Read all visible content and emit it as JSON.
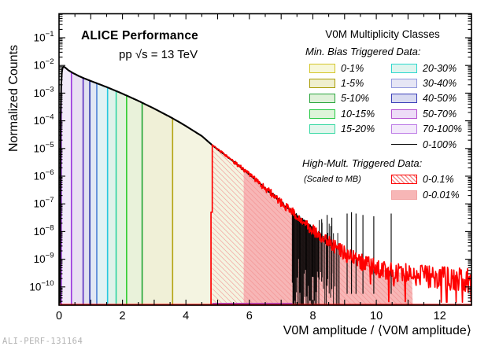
{
  "footer": "ALI-PERF-131164",
  "legend": {
    "title": "V0M Multiplicity Classes",
    "mb_header": "Min. Bias Triggered Data:",
    "mb_entries": [
      {
        "label": "0-1%",
        "fill": "#f7f7d9",
        "border": "#d4c62a"
      },
      {
        "label": "1-5%",
        "fill": "#efefcf",
        "border": "#a89b05"
      },
      {
        "label": "5-10%",
        "fill": "#dff1d9",
        "border": "#2aa53c"
      },
      {
        "label": "10-15%",
        "fill": "#def4d9",
        "border": "#27c944"
      },
      {
        "label": "15-20%",
        "fill": "#e2f6ec",
        "border": "#38d9a4"
      },
      {
        "label": "20-30%",
        "fill": "#def4ee",
        "border": "#2bd8cd"
      },
      {
        "label": "30-40%",
        "fill": "#e6e6f5",
        "border": "#9097dd"
      },
      {
        "label": "40-50%",
        "fill": "#d8daf1",
        "border": "#3a3eb8"
      },
      {
        "label": "50-70%",
        "fill": "#eddcf7",
        "border": "#b44fd0"
      },
      {
        "label": "70-100%",
        "fill": "#f3e9fb",
        "border": "#bd7ce6"
      }
    ],
    "total_entry": {
      "label": "0-100%",
      "color": "#000000"
    },
    "hm_header": "High-Mult. Triggered Data:",
    "hm_note": "(Scaled to MB)",
    "hm_entries": [
      {
        "label": "0-0.1%",
        "type": "hatch",
        "border": "#ff0000",
        "hatch": "#f28c8c"
      },
      {
        "label": "0-0.01%",
        "type": "solid",
        "fill": "#f7b6b6",
        "border": "#f2a3a3"
      }
    ]
  },
  "chart_data": {
    "type": "area",
    "title": "ALICE Performance",
    "subtitle": "pp √s = 13 TeV",
    "xlabel": "V0M amplitude / ⟨V0M amplitude⟩",
    "ylabel": "Normalized Counts",
    "x_range": [
      0,
      13
    ],
    "x_major_ticks": [
      0,
      2,
      4,
      6,
      8,
      10,
      12
    ],
    "x_minor_step": 0.5,
    "y_decade_exponents": [
      -1,
      -2,
      -3,
      -4,
      -5,
      -6,
      -7,
      -8,
      -9,
      -10
    ],
    "y_top_log": -0.134,
    "y_bottom_log": -10.66,
    "grid": false,
    "legend_position": "top-right",
    "envelope_log10": [
      [
        0.03,
        -10.6
      ],
      [
        0.04,
        -6.5
      ],
      [
        0.05,
        -3.9
      ],
      [
        0.06,
        -3.0
      ],
      [
        0.08,
        -2.4
      ],
      [
        0.1,
        -2.12
      ],
      [
        0.14,
        -2.04
      ],
      [
        0.2,
        -2.08
      ],
      [
        0.3,
        -2.18
      ],
      [
        0.45,
        -2.28
      ],
      [
        0.6,
        -2.37
      ],
      [
        0.8,
        -2.47
      ],
      [
        1.0,
        -2.56
      ],
      [
        1.25,
        -2.67
      ],
      [
        1.5,
        -2.78
      ],
      [
        1.75,
        -2.9
      ],
      [
        2.0,
        -3.02
      ],
      [
        2.25,
        -3.15
      ],
      [
        2.5,
        -3.28
      ],
      [
        2.75,
        -3.42
      ],
      [
        3.0,
        -3.56
      ],
      [
        3.25,
        -3.71
      ],
      [
        3.5,
        -3.86
      ],
      [
        3.75,
        -4.02
      ],
      [
        4.0,
        -4.19
      ],
      [
        4.25,
        -4.37
      ],
      [
        4.5,
        -4.55
      ],
      [
        4.83,
        -4.88
      ],
      [
        5.0,
        -5.03
      ],
      [
        5.25,
        -5.25
      ],
      [
        5.5,
        -5.47
      ],
      [
        5.75,
        -5.7
      ],
      [
        6.0,
        -5.94
      ],
      [
        6.25,
        -6.18
      ],
      [
        6.5,
        -6.43
      ],
      [
        6.75,
        -6.68
      ],
      [
        7.0,
        -6.95
      ],
      [
        7.25,
        -7.2
      ],
      [
        7.5,
        -7.45
      ],
      [
        7.75,
        -7.7
      ],
      [
        8.0,
        -7.95
      ],
      [
        8.25,
        -8.18
      ],
      [
        8.5,
        -8.4
      ],
      [
        8.75,
        -8.6
      ],
      [
        9.0,
        -8.78
      ],
      [
        9.25,
        -8.95
      ],
      [
        9.5,
        -9.1
      ],
      [
        9.75,
        -9.22
      ],
      [
        10.0,
        -9.32
      ],
      [
        10.5,
        -9.45
      ],
      [
        11.0,
        -9.52
      ],
      [
        11.5,
        -9.58
      ],
      [
        12.0,
        -9.62
      ],
      [
        12.5,
        -9.66
      ],
      [
        13.0,
        -9.7
      ]
    ],
    "bands": [
      {
        "label": "70-100%",
        "x0": 0.07,
        "x1": 0.39,
        "fill": "#f3ecfa",
        "line": "#9934dd"
      },
      {
        "label": "50-70%",
        "x0": 0.39,
        "x1": 0.76,
        "fill": "#e9e0f3",
        "line": "#5a2ec0"
      },
      {
        "label": "40-50%",
        "x0": 0.76,
        "x1": 0.97,
        "fill": "#e2e2f0",
        "line": "#2b36ad"
      },
      {
        "label": "30-40%",
        "x0": 0.97,
        "x1": 1.19,
        "fill": "#e1e7f4",
        "line": "#4f82d6"
      },
      {
        "label": "20-30%",
        "x0": 1.19,
        "x1": 1.53,
        "fill": "#e1f2f4",
        "line": "#25c8e0"
      },
      {
        "label": "15-20%",
        "x0": 1.53,
        "x1": 1.8,
        "fill": "#dff2ea",
        "line": "#2bd3a2"
      },
      {
        "label": "10-15%",
        "x0": 1.8,
        "x1": 2.13,
        "fill": "#e3f2dd",
        "line": "#2ecc2e"
      },
      {
        "label": "5-10%",
        "x0": 2.13,
        "x1": 2.62,
        "fill": "#e9f2da",
        "line": "#1ea432"
      },
      {
        "label": "1-5%",
        "x0": 2.62,
        "x1": 3.58,
        "fill": "#f0f0d7",
        "line": "#b3a312"
      },
      {
        "label": "0-1%",
        "x0": 3.58,
        "x1": 5.82,
        "fill": "#f4f4e1",
        "line": null
      }
    ],
    "mb_total": {
      "label": "0-100%",
      "color": "#000000",
      "x_end": 8.65
    },
    "high_mult": {
      "curve_color": "#ff0000",
      "hatch": {
        "label": "0-0.1%",
        "x0": 4.83,
        "x1": 11.15,
        "hatch_color": "#f28c8c"
      },
      "solid": {
        "label": "0-0.01%",
        "x0": 5.82,
        "x1": 11.15,
        "fill": "#f7b6b6"
      }
    },
    "black_spikes": {
      "forest_range": [
        7.35,
        8.2
      ],
      "sparse_range": [
        8.2,
        8.85
      ],
      "tall": [
        [
          8.28,
          -7.55
        ],
        [
          8.45,
          -7.4
        ],
        [
          8.6,
          -7.5
        ],
        [
          9.08,
          -7.35
        ],
        [
          9.22,
          -7.3
        ],
        [
          9.36,
          -7.35
        ],
        [
          9.58,
          -7.4
        ],
        [
          9.92,
          -7.45
        ],
        [
          10.47,
          -7.35
        ]
      ]
    },
    "baseline": {
      "red": "#ff0000",
      "violet_segment": "#a44fd0",
      "violet_x": [
        4.83,
        7.35
      ]
    }
  }
}
